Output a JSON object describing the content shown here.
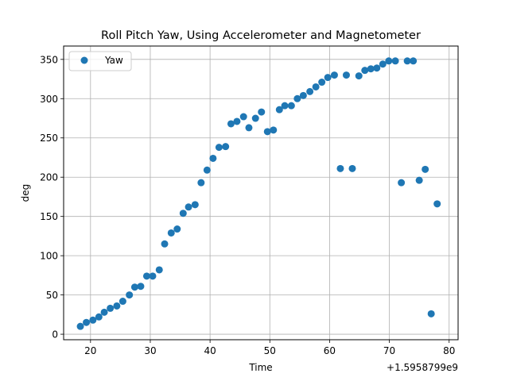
{
  "chart_data": {
    "type": "scatter",
    "title": "Roll Pitch Yaw, Using Accelerometer and Magnetometer",
    "xlabel": "Time",
    "ylabel": "deg",
    "x_offset_label": "+1.5958799e9",
    "xlim": [
      15.5,
      81.5
    ],
    "ylim": [
      -7,
      367
    ],
    "xticks": [
      20,
      30,
      40,
      50,
      60,
      70,
      80
    ],
    "yticks": [
      0,
      50,
      100,
      150,
      200,
      250,
      300,
      350
    ],
    "grid": true,
    "legend_position": "top-left",
    "colors": {
      "series": "#1f77b4"
    },
    "series": [
      {
        "name": "Yaw",
        "points": [
          [
            18.3,
            10
          ],
          [
            19.3,
            15
          ],
          [
            20.4,
            18
          ],
          [
            21.4,
            22
          ],
          [
            22.3,
            28
          ],
          [
            23.3,
            33
          ],
          [
            24.4,
            36
          ],
          [
            25.4,
            42
          ],
          [
            26.5,
            50
          ],
          [
            27.4,
            60
          ],
          [
            28.4,
            61
          ],
          [
            29.4,
            74
          ],
          [
            30.4,
            74
          ],
          [
            31.5,
            82
          ],
          [
            32.4,
            115
          ],
          [
            33.5,
            129
          ],
          [
            34.5,
            134
          ],
          [
            35.5,
            154
          ],
          [
            36.4,
            162
          ],
          [
            37.5,
            165
          ],
          [
            38.5,
            193
          ],
          [
            39.5,
            209
          ],
          [
            40.5,
            224
          ],
          [
            41.5,
            238
          ],
          [
            42.6,
            239
          ],
          [
            43.5,
            268
          ],
          [
            44.5,
            271
          ],
          [
            45.6,
            277
          ],
          [
            46.5,
            263
          ],
          [
            47.6,
            275
          ],
          [
            48.6,
            283
          ],
          [
            49.6,
            258
          ],
          [
            50.6,
            260
          ],
          [
            51.6,
            286
          ],
          [
            52.5,
            291
          ],
          [
            53.6,
            291
          ],
          [
            54.6,
            300
          ],
          [
            55.6,
            304
          ],
          [
            56.7,
            309
          ],
          [
            57.7,
            315
          ],
          [
            58.7,
            321
          ],
          [
            59.7,
            327
          ],
          [
            60.8,
            330
          ],
          [
            61.8,
            211
          ],
          [
            62.8,
            330
          ],
          [
            63.8,
            211
          ],
          [
            64.9,
            329
          ],
          [
            65.9,
            336
          ],
          [
            66.9,
            338
          ],
          [
            67.9,
            339
          ],
          [
            68.9,
            344
          ],
          [
            69.9,
            348
          ],
          [
            71.0,
            348
          ],
          [
            72.0,
            193
          ],
          [
            73.0,
            348
          ],
          [
            74.0,
            348
          ],
          [
            75.0,
            196
          ],
          [
            76.0,
            210
          ],
          [
            77.0,
            26
          ],
          [
            78.0,
            166
          ]
        ]
      }
    ]
  }
}
